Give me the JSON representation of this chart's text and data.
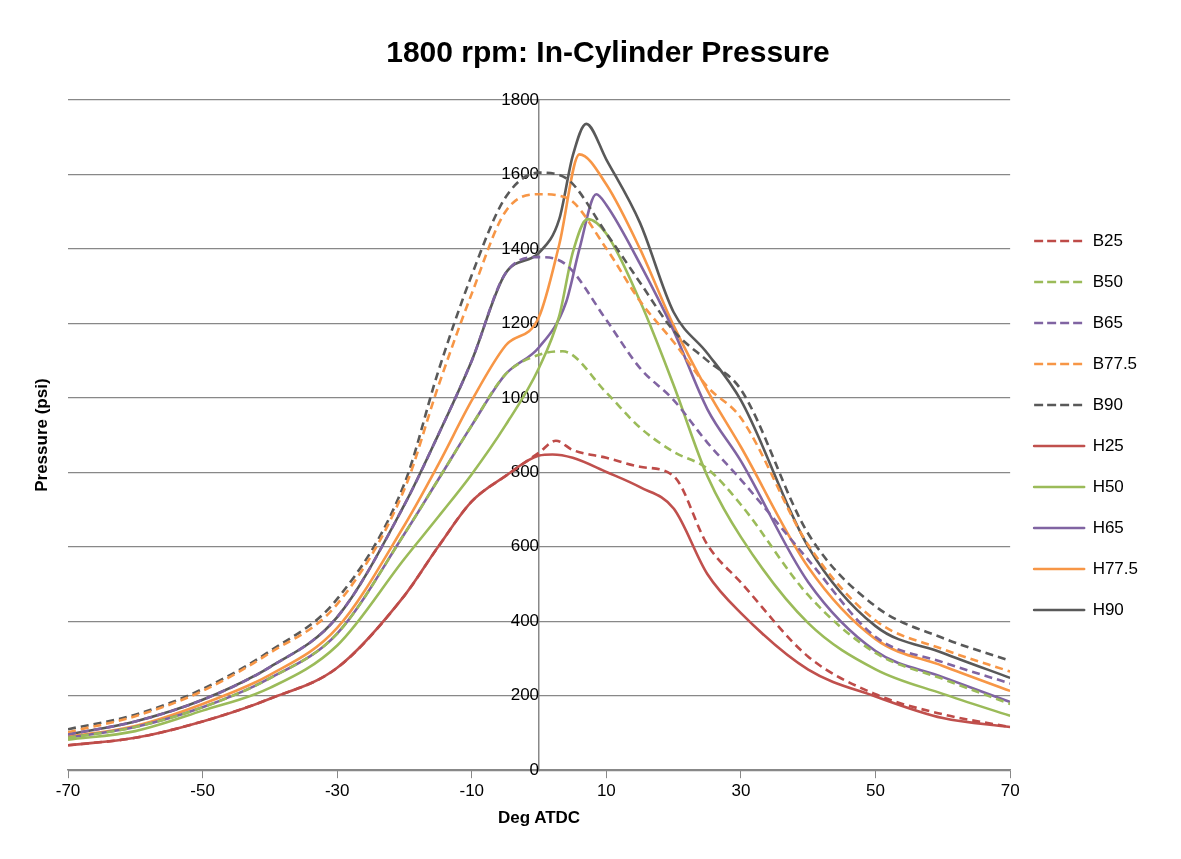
{
  "chart_data": {
    "type": "line",
    "title": "1800 rpm: In-Cylinder Pressure",
    "xlabel": "Deg ATDC",
    "ylabel": "Pressure (psi)",
    "xlim": [
      -70,
      70
    ],
    "xticks": [
      -70,
      -50,
      -30,
      -10,
      10,
      30,
      50,
      70
    ],
    "ylim": [
      0,
      1800
    ],
    "yticks": [
      0,
      200,
      400,
      600,
      800,
      1000,
      1200,
      1400,
      1600,
      1800
    ],
    "grid": "y",
    "legend": "right",
    "marker": "none",
    "series": [
      {
        "name": "B25",
        "color": "#be4b48",
        "line_style": "dashed",
        "x": [
          -70,
          -60,
          -50,
          -40,
          -30,
          -20,
          -15,
          -10,
          -5,
          0,
          2.5,
          5,
          10,
          15,
          20,
          25,
          30,
          40,
          50,
          60,
          70
        ],
        "values": [
          67,
          87,
          131,
          192,
          275,
          469,
          600,
          722,
          790,
          853,
          885,
          860,
          839,
          815,
          790,
          606,
          504,
          305,
          204,
          150,
          116
        ]
      },
      {
        "name": "B50",
        "color": "#9bbb59",
        "line_style": "dashed",
        "x": [
          -70,
          -60,
          -50,
          -40,
          -30,
          -20,
          -15,
          -10,
          -5,
          0,
          3.5,
          10,
          15,
          20,
          25,
          30,
          40,
          50,
          60,
          70
        ],
        "values": [
          87,
          116,
          169,
          247,
          367,
          635,
          780,
          926,
          1063,
          1116,
          1125,
          1014,
          920,
          855,
          810,
          713,
          470,
          315,
          245,
          178
        ]
      },
      {
        "name": "B65",
        "color": "#8064a2",
        "line_style": "dashed",
        "x": [
          -70,
          -60,
          -50,
          -40,
          -30,
          -20,
          -15,
          -10,
          -5,
          0,
          4,
          10,
          15,
          20,
          25,
          30,
          40,
          50,
          60,
          70
        ],
        "values": [
          96,
          131,
          189,
          277,
          411,
          713,
          900,
          1100,
          1334,
          1378,
          1358,
          1209,
          1080,
          994,
          880,
          780,
          565,
          358,
          290,
          233
        ]
      },
      {
        "name": "B77.5",
        "color": "#f79646",
        "line_style": "dashed",
        "x": [
          -70,
          -60,
          -50,
          -40,
          -30,
          -20,
          -15,
          -10,
          -5,
          0,
          4,
          10,
          15,
          20,
          25,
          30,
          40,
          50,
          60,
          70
        ],
        "values": [
          102,
          145,
          213,
          315,
          446,
          755,
          1030,
          1280,
          1500,
          1547,
          1538,
          1401,
          1260,
          1150,
          1030,
          946,
          605,
          402,
          325,
          265
        ]
      },
      {
        "name": "B90",
        "color": "#595959",
        "line_style": "dashed",
        "x": [
          -70,
          -60,
          -50,
          -40,
          -30,
          -20,
          -15,
          -10,
          -5,
          0,
          4,
          10,
          15,
          20,
          25,
          30,
          40,
          50,
          60,
          70
        ],
        "values": [
          110,
          149,
          218,
          320,
          460,
          770,
          1070,
          1330,
          1538,
          1605,
          1590,
          1442,
          1310,
          1180,
          1100,
          1022,
          635,
          440,
          355,
          294
        ]
      },
      {
        "name": "H25",
        "color": "#c0504d",
        "line_style": "solid",
        "x": [
          -70,
          -60,
          -50,
          -40,
          -30,
          -20,
          -15,
          -10,
          -5,
          0,
          2,
          5,
          10,
          15,
          20,
          25,
          30,
          40,
          50,
          60,
          70
        ],
        "values": [
          67,
          87,
          131,
          192,
          275,
          469,
          600,
          722,
          790,
          845,
          848,
          839,
          801,
          760,
          703,
          527,
          422,
          270,
          198,
          140,
          116
        ]
      },
      {
        "name": "H50",
        "color": "#9bbb59",
        "line_style": "solid",
        "x": [
          -70,
          -60,
          -50,
          -40,
          -30,
          -20,
          -15,
          -10,
          -5,
          0,
          3,
          5,
          7.2,
          10,
          15,
          20,
          25,
          30,
          40,
          50,
          60,
          70
        ],
        "values": [
          82,
          105,
          160,
          221,
          335,
          568,
          680,
          795,
          926,
          1081,
          1220,
          1390,
          1480,
          1441,
          1260,
          1034,
          790,
          626,
          395,
          271,
          205,
          146
        ]
      },
      {
        "name": "H65",
        "color": "#8064a2",
        "line_style": "solid",
        "x": [
          -70,
          -60,
          -50,
          -40,
          -30,
          -20,
          -15,
          -10,
          -5,
          0,
          4,
          6,
          8.5,
          10,
          15,
          20,
          25,
          30,
          40,
          50,
          60,
          70
        ],
        "values": [
          87,
          116,
          169,
          247,
          367,
          635,
          780,
          926,
          1063,
          1136,
          1256,
          1400,
          1547,
          1518,
          1360,
          1180,
          970,
          830,
          505,
          320,
          250,
          183
        ]
      },
      {
        "name": "H77.5",
        "color": "#f79646",
        "line_style": "solid",
        "x": [
          -70,
          -60,
          -50,
          -40,
          -30,
          -20,
          -15,
          -10,
          -5,
          0,
          3,
          6,
          10,
          15,
          20,
          25,
          30,
          40,
          50,
          60,
          70
        ],
        "values": [
          90,
          119,
          178,
          256,
          382,
          658,
          820,
          993,
          1140,
          1218,
          1412,
          1654,
          1573,
          1400,
          1194,
          1020,
          868,
          545,
          352,
          280,
          213
        ]
      },
      {
        "name": "H90",
        "color": "#595959",
        "line_style": "solid",
        "x": [
          -70,
          -60,
          -50,
          -40,
          -30,
          -20,
          -15,
          -10,
          -5,
          0,
          3,
          5,
          7,
          10,
          15,
          20,
          25,
          30,
          40,
          50,
          60,
          70
        ],
        "values": [
          96,
          131,
          189,
          277,
          411,
          713,
          900,
          1100,
          1334,
          1390,
          1480,
          1650,
          1736,
          1640,
          1470,
          1230,
          1120,
          993,
          600,
          387,
          315,
          248
        ]
      }
    ]
  }
}
